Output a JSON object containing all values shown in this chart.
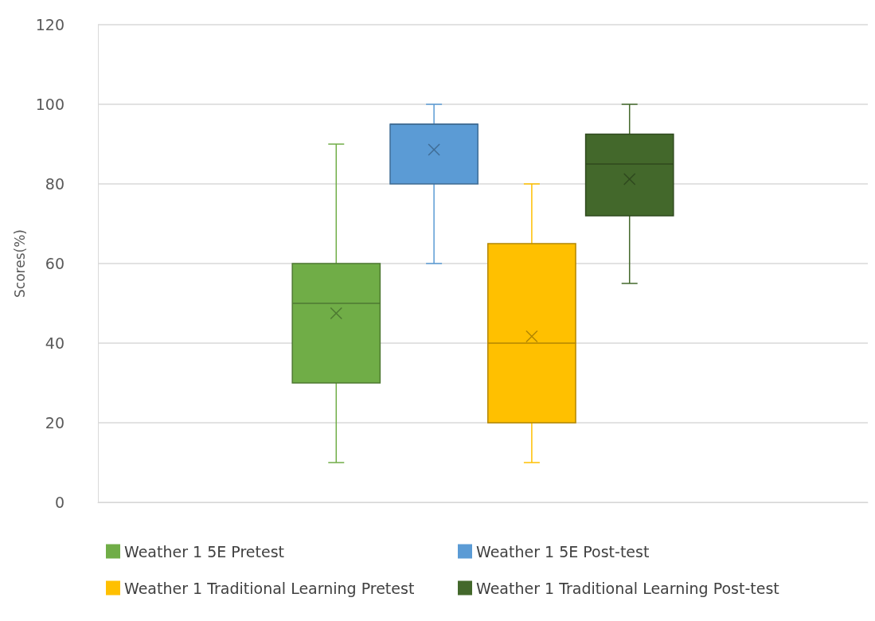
{
  "chart_data": {
    "type": "box",
    "ylabel": "Scores(%)",
    "categories": [
      null
    ],
    "series": [
      {
        "name": "Weather 1 5E Pretest",
        "color": "#70ad47",
        "boxes": [
          {
            "low": 10,
            "q1": 30,
            "median": 50,
            "q3": 60,
            "high": 90,
            "mean": 47.5
          }
        ]
      },
      {
        "name": "Weather 1 5E Post-test",
        "color": "#5b9bd5",
        "boxes": [
          {
            "low": 60,
            "q1": 80,
            "median": 95,
            "q3": 95,
            "high": 100,
            "mean": 88.6
          }
        ]
      },
      {
        "name": "Weather 1 Traditional Learning Pretest",
        "color": "#ffc000",
        "boxes": [
          {
            "low": 10,
            "q1": 20,
            "median": 40,
            "q3": 65,
            "high": 80,
            "mean": 41.7
          }
        ]
      },
      {
        "name": "Weather 1 Traditional Learning Post-test",
        "color": "#43682b",
        "boxes": [
          {
            "low": 55,
            "q1": 72,
            "median": 85,
            "q3": 92.5,
            "high": 100,
            "mean": 81.2
          }
        ]
      }
    ],
    "ylim": [
      0,
      120
    ],
    "yticks": [
      0,
      20,
      40,
      60,
      80,
      100,
      120
    ],
    "grid": "y",
    "legend": "bottom",
    "tick_labels": "y"
  }
}
